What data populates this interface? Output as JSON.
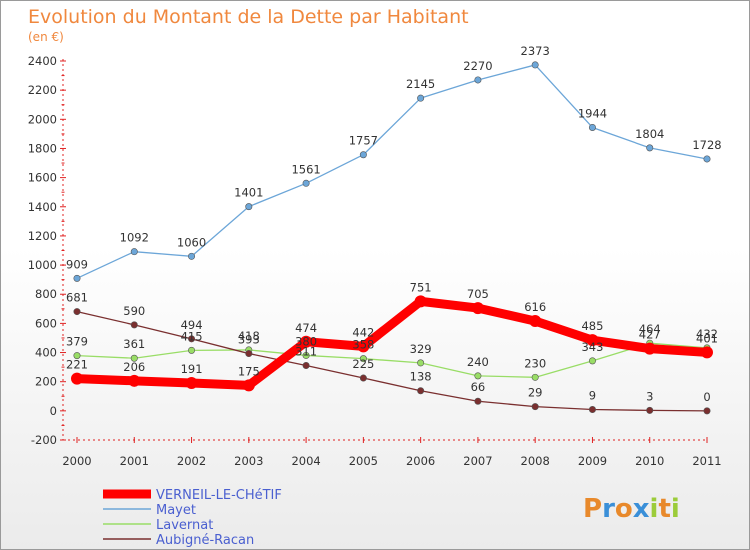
{
  "chart_data": {
    "type": "line",
    "title": "Evolution du Montant de la Dette par Habitant",
    "subtitle": "(en €)",
    "x": [
      "2000",
      "2001",
      "2002",
      "2003",
      "2004",
      "2005",
      "2006",
      "2007",
      "2008",
      "2009",
      "2010",
      "2011"
    ],
    "ylim": [
      -200,
      2400
    ],
    "yticks": [
      -200,
      0,
      200,
      400,
      600,
      800,
      1000,
      1200,
      1400,
      1600,
      1800,
      2000,
      2200,
      2400
    ],
    "grid": false,
    "legend_position": "bottom-left",
    "series": [
      {
        "name": "VERNEIL-LE-CHéTIF",
        "color": "#ff0000",
        "values": [
          221,
          206,
          191,
          175,
          474,
          442,
          751,
          705,
          616,
          485,
          427,
          401
        ]
      },
      {
        "name": "Mayet",
        "color": "#6ca6d8",
        "values": [
          909,
          1092,
          1060,
          1401,
          1561,
          1757,
          2145,
          2270,
          2373,
          1944,
          1804,
          1728
        ]
      },
      {
        "name": "Lavernat",
        "color": "#99dd66",
        "values": [
          379,
          361,
          415,
          418,
          380,
          358,
          329,
          240,
          230,
          343,
          464,
          432
        ]
      },
      {
        "name": "Aubigné-Racan",
        "color": "#7a2f2f",
        "values": [
          681,
          590,
          494,
          393,
          311,
          225,
          138,
          66,
          29,
          9,
          3,
          0
        ]
      }
    ]
  },
  "logo": {
    "text": "Proxiti"
  }
}
